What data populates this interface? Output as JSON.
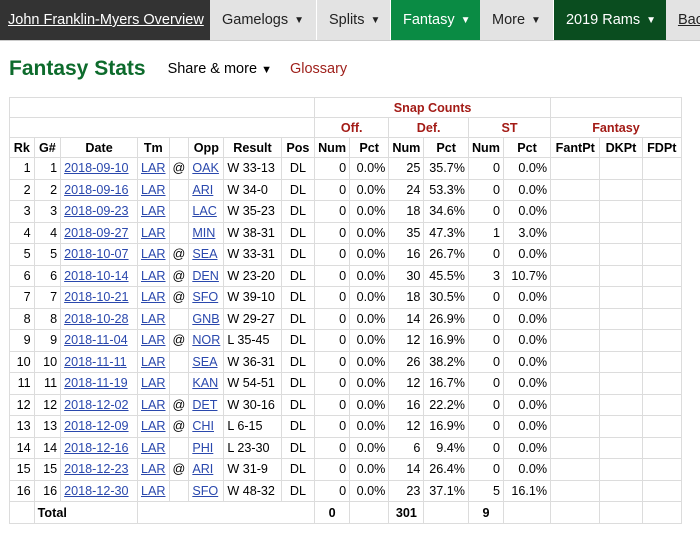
{
  "nav": {
    "player_overview": "John Franklin-Myers Overview",
    "gamelogs": "Gamelogs",
    "splits": "Splits",
    "fantasy": "Fantasy",
    "more": "More",
    "team": "2019 Rams",
    "back": "Bac"
  },
  "section": {
    "title": "Fantasy Stats",
    "share": "Share & more",
    "glossary": "Glossary"
  },
  "table": {
    "group_snap": "Snap Counts",
    "group_off": "Off.",
    "group_def": "Def.",
    "group_st": "ST",
    "group_fantasy": "Fantasy",
    "headers": [
      "Rk",
      "G#",
      "Date",
      "Tm",
      "",
      "Opp",
      "Result",
      "Pos",
      "Num",
      "Pct",
      "Num",
      "Pct",
      "Num",
      "Pct",
      "FantPt",
      "DKPt",
      "FDPt"
    ],
    "rows": [
      [
        "1",
        "1",
        "2018-09-10",
        "LAR",
        "@",
        "OAK",
        "W 33-13",
        "DL",
        "0",
        "0.0%",
        "25",
        "35.7%",
        "0",
        "0.0%"
      ],
      [
        "2",
        "2",
        "2018-09-16",
        "LAR",
        "",
        "ARI",
        "W 34-0",
        "DL",
        "0",
        "0.0%",
        "24",
        "53.3%",
        "0",
        "0.0%"
      ],
      [
        "3",
        "3",
        "2018-09-23",
        "LAR",
        "",
        "LAC",
        "W 35-23",
        "DL",
        "0",
        "0.0%",
        "18",
        "34.6%",
        "0",
        "0.0%"
      ],
      [
        "4",
        "4",
        "2018-09-27",
        "LAR",
        "",
        "MIN",
        "W 38-31",
        "DL",
        "0",
        "0.0%",
        "35",
        "47.3%",
        "1",
        "3.0%"
      ],
      [
        "5",
        "5",
        "2018-10-07",
        "LAR",
        "@",
        "SEA",
        "W 33-31",
        "DL",
        "0",
        "0.0%",
        "16",
        "26.7%",
        "0",
        "0.0%"
      ],
      [
        "6",
        "6",
        "2018-10-14",
        "LAR",
        "@",
        "DEN",
        "W 23-20",
        "DL",
        "0",
        "0.0%",
        "30",
        "45.5%",
        "3",
        "10.7%"
      ],
      [
        "7",
        "7",
        "2018-10-21",
        "LAR",
        "@",
        "SFO",
        "W 39-10",
        "DL",
        "0",
        "0.0%",
        "18",
        "30.5%",
        "0",
        "0.0%"
      ],
      [
        "8",
        "8",
        "2018-10-28",
        "LAR",
        "",
        "GNB",
        "W 29-27",
        "DL",
        "0",
        "0.0%",
        "14",
        "26.9%",
        "0",
        "0.0%"
      ],
      [
        "9",
        "9",
        "2018-11-04",
        "LAR",
        "@",
        "NOR",
        "L 35-45",
        "DL",
        "0",
        "0.0%",
        "12",
        "16.9%",
        "0",
        "0.0%"
      ],
      [
        "10",
        "10",
        "2018-11-11",
        "LAR",
        "",
        "SEA",
        "W 36-31",
        "DL",
        "0",
        "0.0%",
        "26",
        "38.2%",
        "0",
        "0.0%"
      ],
      [
        "11",
        "11",
        "2018-11-19",
        "LAR",
        "",
        "KAN",
        "W 54-51",
        "DL",
        "0",
        "0.0%",
        "12",
        "16.7%",
        "0",
        "0.0%"
      ],
      [
        "12",
        "12",
        "2018-12-02",
        "LAR",
        "@",
        "DET",
        "W 30-16",
        "DL",
        "0",
        "0.0%",
        "16",
        "22.2%",
        "0",
        "0.0%"
      ],
      [
        "13",
        "13",
        "2018-12-09",
        "LAR",
        "@",
        "CHI",
        "L 6-15",
        "DL",
        "0",
        "0.0%",
        "12",
        "16.9%",
        "0",
        "0.0%"
      ],
      [
        "14",
        "14",
        "2018-12-16",
        "LAR",
        "",
        "PHI",
        "L 23-30",
        "DL",
        "0",
        "0.0%",
        "6",
        "9.4%",
        "0",
        "0.0%"
      ],
      [
        "15",
        "15",
        "2018-12-23",
        "LAR",
        "@",
        "ARI",
        "W 31-9",
        "DL",
        "0",
        "0.0%",
        "14",
        "26.4%",
        "0",
        "0.0%"
      ],
      [
        "16",
        "16",
        "2018-12-30",
        "LAR",
        "",
        "SFO",
        "W 48-32",
        "DL",
        "0",
        "0.0%",
        "23",
        "37.1%",
        "5",
        "16.1%"
      ]
    ],
    "total": {
      "label": "Total",
      "off_num": "0",
      "def_num": "301",
      "st_num": "9"
    }
  }
}
